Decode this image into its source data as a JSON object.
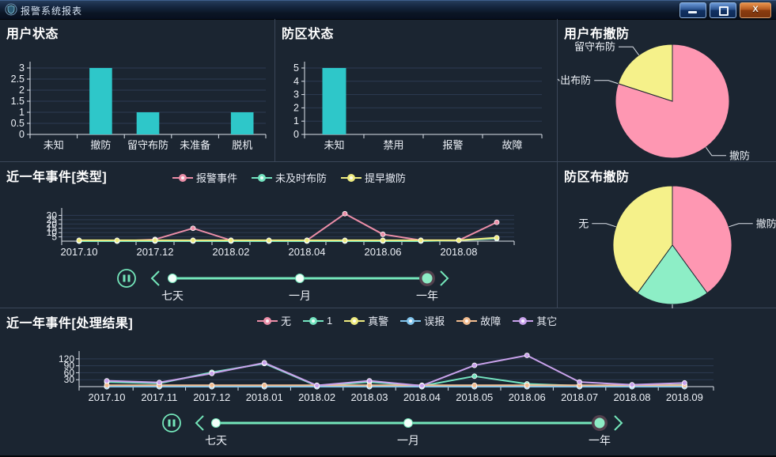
{
  "window": {
    "title": "报警系统报表",
    "close_label": "X"
  },
  "panels": {
    "user_status": {
      "title": "用户状态"
    },
    "zone_status": {
      "title": "防区状态"
    },
    "user_arm": {
      "title": "用户布撤防"
    },
    "events_type": {
      "title": "近一年事件[类型]"
    },
    "zone_arm": {
      "title": "防区布撤防"
    },
    "events_result": {
      "title": "近一年事件[处理结果]"
    }
  },
  "timeline": {
    "labels": [
      "七天",
      "一月",
      "一年"
    ],
    "selected": "一年",
    "selected_index": 2,
    "color": "#74e6ba"
  },
  "colors": {
    "background": "#1b2531",
    "panel_border": "#3b4759",
    "axis": "#dde3ec",
    "grid": "#2d3b52",
    "bar": "#2ec7c9"
  },
  "chart_data": [
    {
      "id": "user_status",
      "type": "bar",
      "title": "用户状态",
      "categories": [
        "未知",
        "撤防",
        "留守布防",
        "未准备",
        "脱机"
      ],
      "values": [
        0,
        3,
        1,
        0,
        1
      ],
      "yticks": [
        0,
        0.5,
        1,
        1.5,
        2,
        2.5,
        3
      ],
      "ylim": [
        0,
        3
      ],
      "bar_color": "#2ec7c9",
      "grid": true
    },
    {
      "id": "zone_status",
      "type": "bar",
      "title": "防区状态",
      "categories": [
        "未知",
        "禁用",
        "报警",
        "故障"
      ],
      "values": [
        5,
        0,
        0,
        0
      ],
      "yticks": [
        0,
        1,
        2,
        3,
        4,
        5
      ],
      "ylim": [
        0,
        5
      ],
      "bar_color": "#2ec7c9",
      "grid": true
    },
    {
      "id": "user_arm",
      "type": "pie",
      "title": "用户布撤防",
      "slices": [
        {
          "label": "撤防",
          "value": 4,
          "color": "#fe97b2"
        },
        {
          "label": "外出布防",
          "value": 0,
          "color": "#90d7ea"
        },
        {
          "label": "留守布防",
          "value": 1,
          "color": "#f5f18a"
        }
      ]
    },
    {
      "id": "events_type",
      "type": "line",
      "title": "近一年事件[类型]",
      "x": [
        "2017.10",
        "2017.11",
        "2017.12",
        "2018.01",
        "2018.02",
        "2018.03",
        "2018.04",
        "2018.05",
        "2018.06",
        "2018.07",
        "2018.08",
        "2018.09"
      ],
      "x_tick_every": 2,
      "yticks": [
        5,
        10,
        15,
        20,
        25,
        30
      ],
      "ylim": [
        0,
        35
      ],
      "legend_position": "top",
      "series": [
        {
          "name": "报警事件",
          "color": "#ec8ea8",
          "values": [
            0,
            0,
            2,
            15,
            1,
            0,
            1,
            32,
            8,
            1,
            1,
            22
          ]
        },
        {
          "name": "未及时布防",
          "color": "#74e4c0",
          "values": [
            0,
            0,
            0,
            0,
            0,
            0,
            0,
            0,
            0,
            0,
            1,
            3
          ]
        },
        {
          "name": "提早撤防",
          "color": "#efec80",
          "values": [
            1,
            1,
            1,
            1,
            1,
            1,
            1,
            1,
            1,
            1,
            1,
            4
          ]
        }
      ]
    },
    {
      "id": "zone_arm",
      "type": "pie",
      "title": "防区布撤防",
      "slices": [
        {
          "label": "撤防",
          "value": 2,
          "color": "#fe97b2"
        },
        {
          "label": "",
          "value": 1,
          "color": "#8deec6"
        },
        {
          "label": "无",
          "value": 2,
          "color": "#f5f18a"
        }
      ]
    },
    {
      "id": "events_result",
      "type": "line",
      "title": "近一年事件[处理结果]",
      "x": [
        "2017.10",
        "2017.11",
        "2017.12",
        "2018.01",
        "2018.02",
        "2018.03",
        "2018.04",
        "2018.05",
        "2018.06",
        "2018.07",
        "2018.08",
        "2018.09"
      ],
      "x_tick_every": 1,
      "yticks": [
        30,
        60,
        90,
        120
      ],
      "ylim": [
        0,
        140
      ],
      "legend_position": "top",
      "series": [
        {
          "name": "无",
          "color": "#ec8ea8",
          "values": [
            0,
            0,
            0,
            0,
            0,
            0,
            0,
            0,
            0,
            0,
            0,
            0
          ]
        },
        {
          "name": "1",
          "color": "#74e4c0",
          "values": [
            20,
            14,
            62,
            100,
            3,
            20,
            3,
            45,
            12,
            4,
            3,
            8
          ]
        },
        {
          "name": "真警",
          "color": "#efec80",
          "values": [
            0,
            0,
            0,
            0,
            0,
            0,
            0,
            0,
            0,
            0,
            0,
            5
          ]
        },
        {
          "name": "误报",
          "color": "#82c6ee",
          "values": [
            0,
            0,
            0,
            0,
            0,
            0,
            0,
            0,
            0,
            0,
            0,
            0
          ]
        },
        {
          "name": "故障",
          "color": "#f3bd90",
          "values": [
            6,
            6,
            6,
            6,
            6,
            6,
            6,
            6,
            6,
            6,
            6,
            6
          ]
        },
        {
          "name": "其它",
          "color": "#c9a2ec",
          "values": [
            25,
            18,
            57,
            103,
            5,
            25,
            4,
            92,
            135,
            20,
            8,
            16
          ]
        }
      ]
    }
  ]
}
